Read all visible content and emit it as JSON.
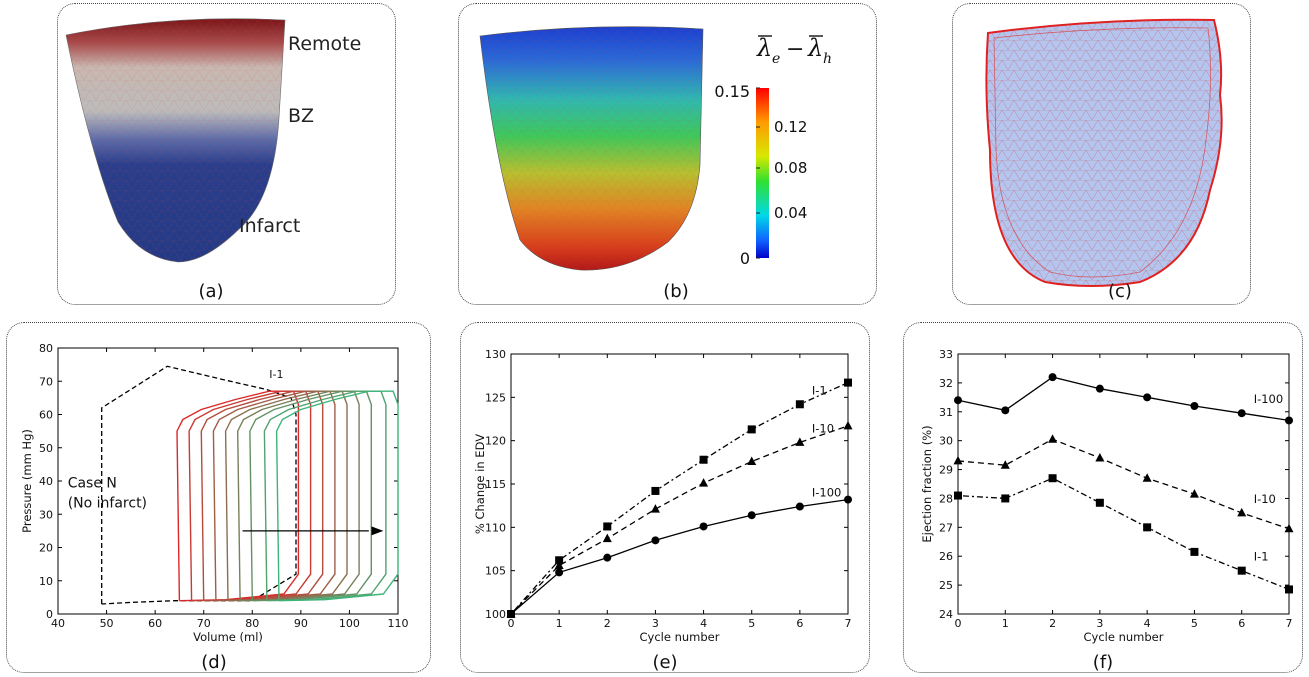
{
  "panels": {
    "a": {
      "caption": "(a)",
      "labels": {
        "remote": "Remote",
        "bz": "BZ",
        "infarct": "Infarct"
      }
    },
    "b": {
      "caption": "(b)",
      "colorbar": {
        "ticks": [
          "0.15",
          "0.12",
          "0.08",
          "0.04",
          "0"
        ]
      }
    },
    "c": {
      "caption": "(c)"
    },
    "d": {
      "caption": "(d)"
    },
    "e": {
      "caption": "(e)"
    },
    "f": {
      "caption": "(f)"
    }
  },
  "colors": {
    "infarct_blue": "#1e3a8a",
    "bz_gray": "#c8c8c8",
    "remote_red": "#8b1a1a",
    "mesh_red": "#e02020",
    "mesh_fill": "#b4c6f0"
  },
  "chart_data": [
    {
      "id": "d",
      "type": "line",
      "xlabel": "Volume (ml)",
      "ylabel": "Pressure (mm Hg)",
      "xlim": [
        40,
        110
      ],
      "ylim": [
        0,
        80
      ],
      "xticks": [
        40,
        50,
        60,
        70,
        80,
        90,
        100,
        110
      ],
      "yticks": [
        0,
        10,
        20,
        30,
        40,
        50,
        60,
        70,
        80
      ],
      "annotations": {
        "loop_label": "I-1",
        "case_n_line1": "Case N",
        "case_n_line2": "(No infarct)"
      },
      "case_n_loop": [
        [
          49,
          3
        ],
        [
          49,
          62
        ],
        [
          62.5,
          74.5
        ],
        [
          74,
          70.5
        ],
        [
          83,
          67.5
        ],
        [
          88,
          65
        ],
        [
          89,
          60
        ],
        [
          89,
          12
        ],
        [
          80,
          4
        ],
        [
          64,
          4
        ],
        [
          55,
          3.5
        ],
        [
          49,
          3
        ]
      ],
      "loops_edv": [
        64.5,
        67,
        69.5,
        72,
        74.5,
        77,
        79.5,
        82.5,
        85
      ]
    },
    {
      "id": "e",
      "type": "line",
      "xlabel": "Cycle number",
      "ylabel": "% Change in EDV",
      "xlim": [
        0,
        7
      ],
      "ylim": [
        100,
        130
      ],
      "xticks": [
        0,
        1,
        2,
        3,
        4,
        5,
        6,
        7
      ],
      "yticks": [
        100,
        105,
        110,
        115,
        120,
        125,
        130
      ],
      "x": [
        0,
        1,
        2,
        3,
        4,
        5,
        6,
        7
      ],
      "series": [
        {
          "name": "I-1",
          "marker": "square",
          "dash": "dashdot",
          "values": [
            100,
            106.2,
            110.1,
            114.2,
            117.8,
            121.3,
            124.2,
            126.7
          ]
        },
        {
          "name": "I-10",
          "marker": "triangle",
          "dash": "dashed",
          "values": [
            100,
            105.6,
            108.7,
            112.1,
            115.1,
            117.6,
            119.8,
            121.7
          ]
        },
        {
          "name": "I-100",
          "marker": "circle",
          "dash": "solid",
          "values": [
            100,
            104.8,
            106.5,
            108.5,
            110.1,
            111.4,
            112.4,
            113.2
          ]
        }
      ]
    },
    {
      "id": "f",
      "type": "line",
      "xlabel": "Cycle number",
      "ylabel": "Ejection fraction (%)",
      "xlim": [
        0,
        7
      ],
      "ylim": [
        24,
        33
      ],
      "xticks": [
        0,
        1,
        2,
        3,
        4,
        5,
        6,
        7
      ],
      "yticks": [
        24,
        25,
        26,
        27,
        28,
        29,
        30,
        31,
        32,
        33
      ],
      "x": [
        0,
        1,
        2,
        3,
        4,
        5,
        6,
        7
      ],
      "series": [
        {
          "name": "I-100",
          "marker": "circle",
          "dash": "solid",
          "values": [
            31.4,
            31.05,
            32.2,
            31.8,
            31.5,
            31.2,
            30.95,
            30.7
          ]
        },
        {
          "name": "I-10",
          "marker": "triangle",
          "dash": "dashed",
          "values": [
            29.3,
            29.15,
            30.05,
            29.4,
            28.7,
            28.15,
            27.5,
            26.95
          ]
        },
        {
          "name": "I-1",
          "marker": "square",
          "dash": "dashdot",
          "values": [
            28.1,
            28.0,
            28.7,
            27.85,
            27.0,
            26.15,
            25.5,
            24.85
          ]
        }
      ]
    }
  ]
}
